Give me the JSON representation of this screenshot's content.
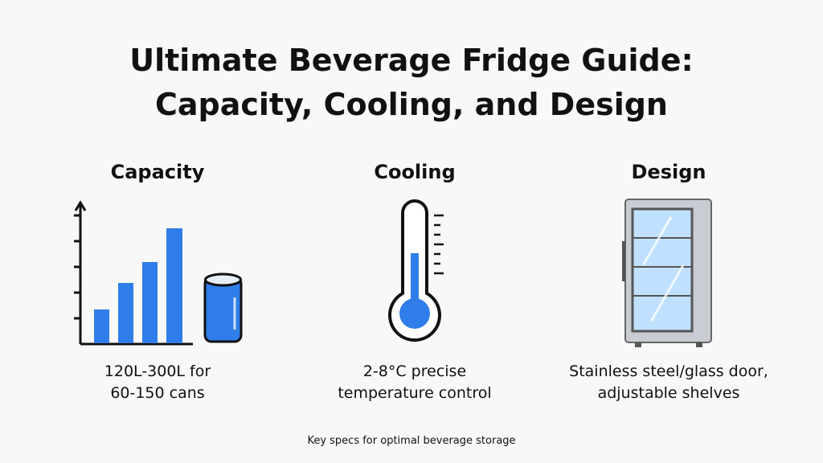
{
  "header": {
    "title_lines": [
      "Ultimate Beverage Fridge Guide:",
      "Capacity, Cooling, and Design"
    ]
  },
  "columns": [
    {
      "heading": "Capacity",
      "description_lines": [
        "120L-300L for",
        "60-150 cans"
      ]
    },
    {
      "heading": "Cooling",
      "description_lines": [
        "2-8°C precise",
        "temperature control"
      ]
    },
    {
      "heading": "Design",
      "description_lines": [
        "Stainless steel/glass door,",
        "adjustable shelves"
      ]
    }
  ],
  "footer": {
    "caption": "Key specs for optimal beverage storage"
  }
}
